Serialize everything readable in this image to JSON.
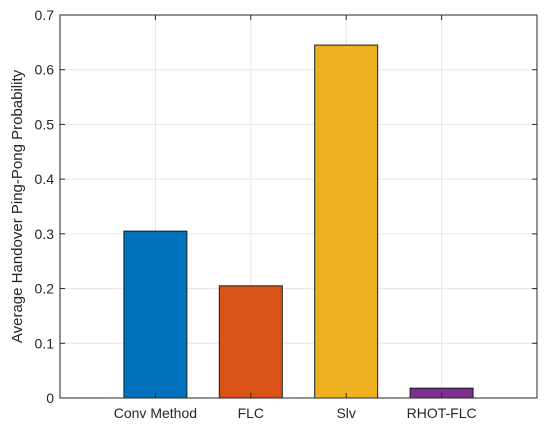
{
  "chart_data": {
    "type": "bar",
    "title": "",
    "xlabel": "",
    "ylabel": "Average Handover Ping-Pong Probability",
    "categories": [
      "Conv Method",
      "FLC",
      "Slv",
      "RHOT-FLC"
    ],
    "values": [
      0.305,
      0.205,
      0.645,
      0.018
    ],
    "bar_colors": [
      "#0072BD",
      "#D95319",
      "#EDB120",
      "#7E2F8E"
    ],
    "ylim": [
      0,
      0.7
    ],
    "yticks": [
      "0",
      "0.1",
      "0.2",
      "0.3",
      "0.4",
      "0.5",
      "0.6",
      "0.7"
    ],
    "grid": true,
    "legend": "none"
  }
}
